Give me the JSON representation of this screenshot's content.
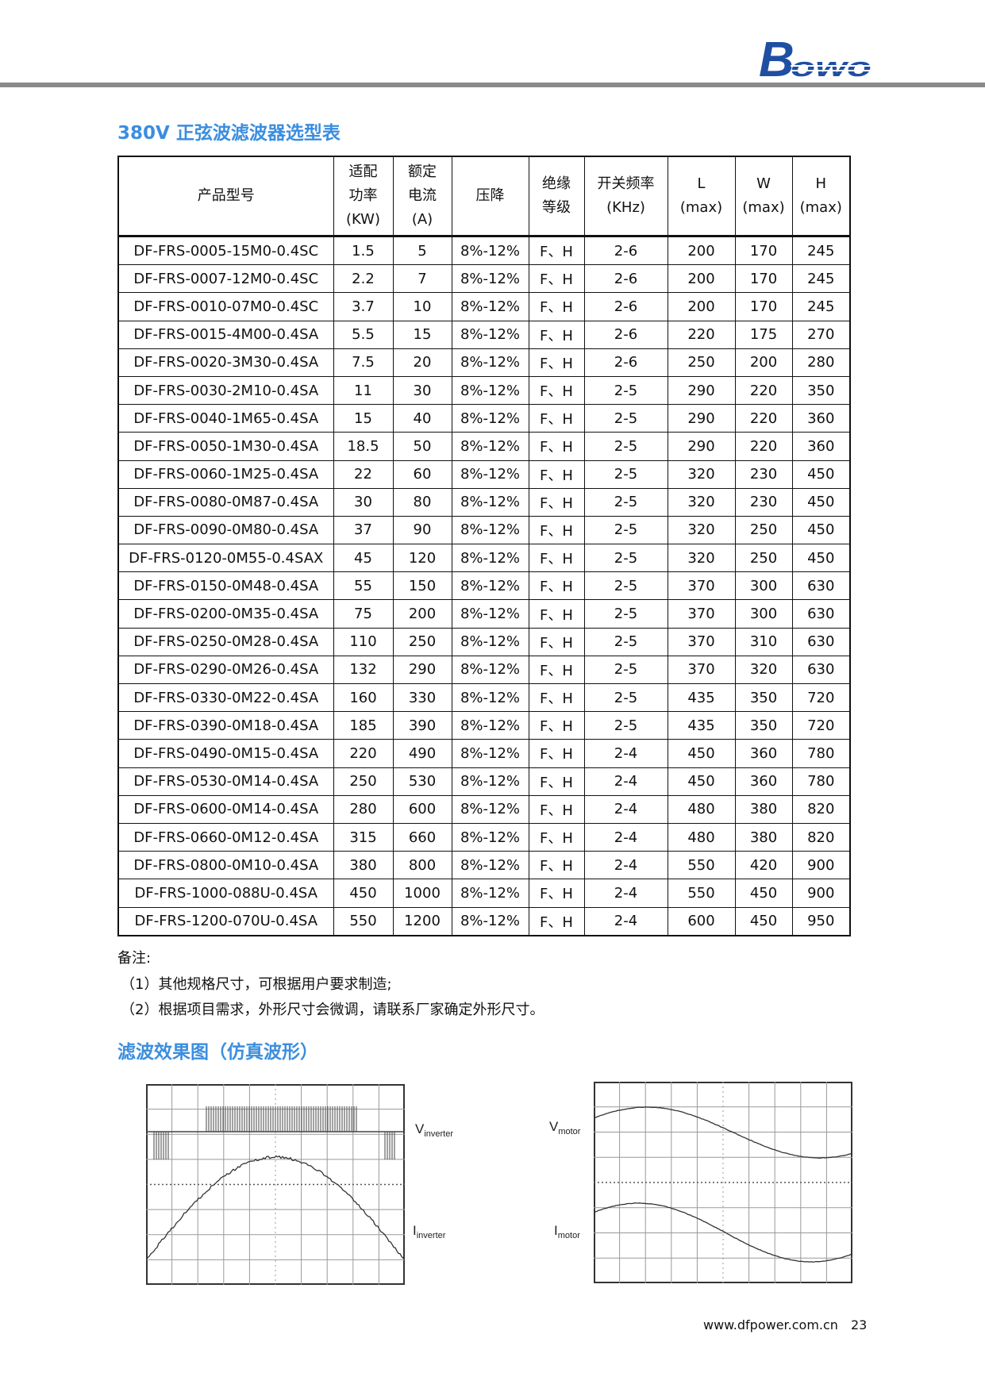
{
  "header": {
    "logo_text": "Bowo",
    "logo_color": "#1f4fa3",
    "rule_color": "#8a8a8a"
  },
  "accent_color": "#3b8ede",
  "section1_title": "380V 正弦波滤波器选型表",
  "table": {
    "headers": [
      {
        "lines": [
          "产品型号"
        ]
      },
      {
        "lines": [
          "适配",
          "功率",
          "(KW)"
        ]
      },
      {
        "lines": [
          "额定",
          "电流",
          "(A)"
        ]
      },
      {
        "lines": [
          "压降"
        ]
      },
      {
        "lines": [
          "绝缘",
          "等级"
        ]
      },
      {
        "lines": [
          "开关频率",
          "(KHz)"
        ]
      },
      {
        "lines": [
          "L",
          "(max)"
        ]
      },
      {
        "lines": [
          "W",
          "(max)"
        ]
      },
      {
        "lines": [
          "H",
          "(max)"
        ]
      }
    ],
    "rows": [
      [
        "DF-FRS-0005-15M0-0.4SC",
        "1.5",
        "5",
        "8%-12%",
        "F、H",
        "2-6",
        "200",
        "170",
        "245"
      ],
      [
        "DF-FRS-0007-12M0-0.4SC",
        "2.2",
        "7",
        "8%-12%",
        "F、H",
        "2-6",
        "200",
        "170",
        "245"
      ],
      [
        "DF-FRS-0010-07M0-0.4SC",
        "3.7",
        "10",
        "8%-12%",
        "F、H",
        "2-6",
        "200",
        "170",
        "245"
      ],
      [
        "DF-FRS-0015-4M00-0.4SA",
        "5.5",
        "15",
        "8%-12%",
        "F、H",
        "2-6",
        "220",
        "175",
        "270"
      ],
      [
        "DF-FRS-0020-3M30-0.4SA",
        "7.5",
        "20",
        "8%-12%",
        "F、H",
        "2-6",
        "250",
        "200",
        "280"
      ],
      [
        "DF-FRS-0030-2M10-0.4SA",
        "11",
        "30",
        "8%-12%",
        "F、H",
        "2-5",
        "290",
        "220",
        "350"
      ],
      [
        "DF-FRS-0040-1M65-0.4SA",
        "15",
        "40",
        "8%-12%",
        "F、H",
        "2-5",
        "290",
        "220",
        "360"
      ],
      [
        "DF-FRS-0050-1M30-0.4SA",
        "18.5",
        "50",
        "8%-12%",
        "F、H",
        "2-5",
        "290",
        "220",
        "360"
      ],
      [
        "DF-FRS-0060-1M25-0.4SA",
        "22",
        "60",
        "8%-12%",
        "F、H",
        "2-5",
        "320",
        "230",
        "450"
      ],
      [
        "DF-FRS-0080-0M87-0.4SA",
        "30",
        "80",
        "8%-12%",
        "F、H",
        "2-5",
        "320",
        "230",
        "450"
      ],
      [
        "DF-FRS-0090-0M80-0.4SA",
        "37",
        "90",
        "8%-12%",
        "F、H",
        "2-5",
        "320",
        "250",
        "450"
      ],
      [
        "DF-FRS-0120-0M55-0.4SAX",
        "45",
        "120",
        "8%-12%",
        "F、H",
        "2-5",
        "320",
        "250",
        "450"
      ],
      [
        "DF-FRS-0150-0M48-0.4SA",
        "55",
        "150",
        "8%-12%",
        "F、H",
        "2-5",
        "370",
        "300",
        "630"
      ],
      [
        "DF-FRS-0200-0M35-0.4SA",
        "75",
        "200",
        "8%-12%",
        "F、H",
        "2-5",
        "370",
        "300",
        "630"
      ],
      [
        "DF-FRS-0250-0M28-0.4SA",
        "110",
        "250",
        "8%-12%",
        "F、H",
        "2-5",
        "370",
        "310",
        "630"
      ],
      [
        "DF-FRS-0290-0M26-0.4SA",
        "132",
        "290",
        "8%-12%",
        "F、H",
        "2-5",
        "370",
        "320",
        "630"
      ],
      [
        "DF-FRS-0330-0M22-0.4SA",
        "160",
        "330",
        "8%-12%",
        "F、H",
        "2-5",
        "435",
        "350",
        "720"
      ],
      [
        "DF-FRS-0390-0M18-0.4SA",
        "185",
        "390",
        "8%-12%",
        "F、H",
        "2-5",
        "435",
        "350",
        "720"
      ],
      [
        "DF-FRS-0490-0M15-0.4SA",
        "220",
        "490",
        "8%-12%",
        "F、H",
        "2-4",
        "450",
        "360",
        "780"
      ],
      [
        "DF-FRS-0530-0M14-0.4SA",
        "250",
        "530",
        "8%-12%",
        "F、H",
        "2-4",
        "450",
        "360",
        "780"
      ],
      [
        "DF-FRS-0600-0M14-0.4SA",
        "280",
        "600",
        "8%-12%",
        "F、H",
        "2-4",
        "480",
        "380",
        "820"
      ],
      [
        "DF-FRS-0660-0M12-0.4SA",
        "315",
        "660",
        "8%-12%",
        "F、H",
        "2-4",
        "480",
        "380",
        "820"
      ],
      [
        "DF-FRS-0800-0M10-0.4SA",
        "380",
        "800",
        "8%-12%",
        "F、H",
        "2-4",
        "550",
        "420",
        "900"
      ],
      [
        "DF-FRS-1000-088U-0.4SA",
        "450",
        "1000",
        "8%-12%",
        "F、H",
        "2-4",
        "550",
        "450",
        "900"
      ],
      [
        "DF-FRS-1200-070U-0.4SA",
        "550",
        "1200",
        "8%-12%",
        "F、H",
        "2-4",
        "600",
        "450",
        "950"
      ]
    ]
  },
  "notes": {
    "heading": "备注:",
    "items": [
      "（1）其他规格尺寸，可根据用户要求制造;",
      "（2）根据项目需求，外形尺寸会微调，请联系厂家确定外形尺寸。"
    ]
  },
  "section2_title": "滤波效果图（仿真波形）",
  "waveforms": {
    "left": {
      "v_label": "V",
      "v_sub": "inverter",
      "i_label": "I",
      "i_sub": "inverter"
    },
    "right": {
      "v_label": "V",
      "v_sub": "motor",
      "i_label": "I",
      "i_sub": "motor"
    }
  },
  "footer": {
    "website": "www.dfpower.com.cn",
    "page_number": "23"
  }
}
